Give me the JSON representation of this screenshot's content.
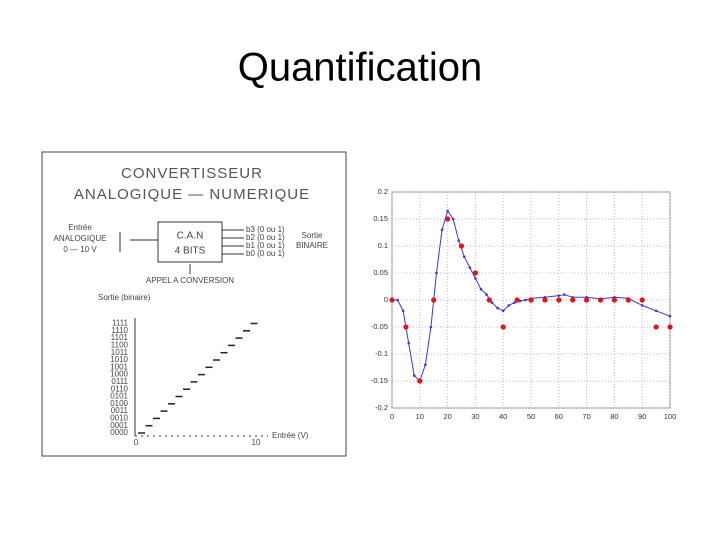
{
  "header": {
    "title": "Quantification"
  },
  "diagram": {
    "title_lines": [
      "CONVERTISSEUR",
      "ANALOGIQUE — NUMERIQUE"
    ],
    "input_lines": [
      "Entrée",
      "ANALOGIQUE",
      "0 — 10 V"
    ],
    "box_lines": [
      "C.A.N",
      "4 BITS"
    ],
    "bits": [
      "b3 (0 ou 1)",
      "b2 (0 ou 1)",
      "b1 (0 ou 1)",
      "b0 (0 ou 1)"
    ],
    "output_lines": [
      "Sortie",
      "BINAIRE"
    ],
    "trigger": "APPEL A CONVERSION",
    "y_label": "Sortie (binaire)",
    "codes": [
      "0000",
      "0001",
      "0010",
      "0011",
      "0100",
      "0101",
      "0110",
      "0111",
      "1000",
      "1001",
      "1010",
      "1011",
      "1100",
      "1101",
      "1110",
      "1111"
    ],
    "x_start": "0",
    "x_end": "10",
    "x_label": "Entrée (V)"
  },
  "chart_data": {
    "type": "line",
    "series": [
      {
        "color": "#3a3acc",
        "marker": "dot",
        "x": [
          0,
          2,
          4,
          6,
          8,
          10,
          12,
          14,
          16,
          18,
          20,
          22,
          24,
          26,
          28,
          30,
          32,
          34,
          36,
          38,
          40,
          42,
          44,
          46,
          48,
          50,
          55,
          60,
          62,
          65,
          70,
          75,
          80,
          85,
          90,
          95,
          100
        ],
        "values": [
          0,
          0,
          -0.02,
          -0.08,
          -0.14,
          -0.15,
          -0.12,
          -0.05,
          0.05,
          0.13,
          0.165,
          0.15,
          0.11,
          0.08,
          0.06,
          0.04,
          0.02,
          0.01,
          -0.005,
          -0.015,
          -0.02,
          -0.01,
          -0.005,
          -0.002,
          0,
          0.003,
          0.005,
          0.008,
          0.01,
          0.005,
          0.005,
          0.002,
          0.005,
          0.003,
          -0.01,
          -0.02,
          -0.03
        ]
      },
      {
        "color": "#e0151b",
        "marker": "point",
        "x": [
          0,
          5,
          10,
          15,
          20,
          25,
          30,
          35,
          40,
          45,
          50,
          55,
          60,
          65,
          70,
          75,
          80,
          85,
          90,
          95,
          100
        ],
        "values": [
          0,
          -0.05,
          -0.15,
          0,
          0.15,
          0.1,
          0.05,
          0,
          -0.05,
          0,
          0,
          0,
          0,
          0,
          0,
          0,
          0,
          0,
          0,
          -0.05,
          -0.05
        ]
      }
    ],
    "xlim": [
      0,
      100
    ],
    "xticks": [
      0,
      10,
      20,
      30,
      40,
      50,
      60,
      70,
      80,
      90,
      100
    ],
    "ylim": [
      -0.2,
      0.2
    ],
    "yticks": [
      -0.2,
      -0.15,
      -0.1,
      -0.05,
      0,
      0.05,
      0.1,
      0.15,
      0.2
    ],
    "grid": true
  }
}
